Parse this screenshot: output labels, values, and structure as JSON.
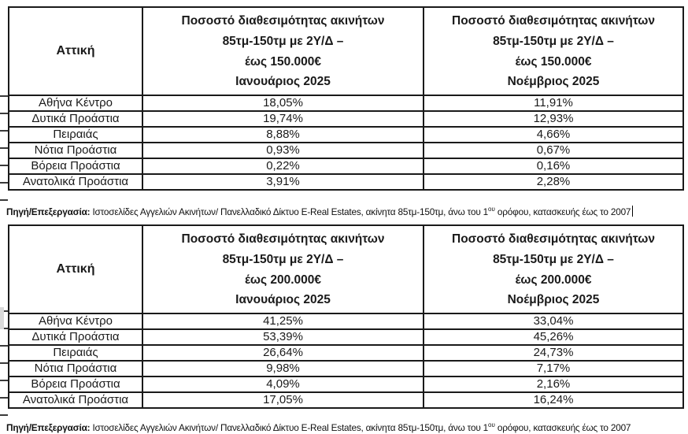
{
  "page": {
    "background_color": "#ffffff",
    "border_color": "#1a1a1a",
    "text_color": "#1a1a1a",
    "artifact_gray": "#d9d9d9"
  },
  "table1": {
    "region_label": "Αττική",
    "jan_header": {
      "line1": "Ποσοστό διαθεσιμότητας ακινήτων",
      "line2": "85τμ-150τμ με 2Υ/Δ –",
      "line3": "έως 150.000€",
      "month": "Ιανουάριος 2025"
    },
    "nov_header": {
      "line1": "Ποσοστό διαθεσιμότητας ακινήτων",
      "line2": "85τμ-150τμ με 2Υ/Δ –",
      "line3": "έως 150.000€",
      "month": "Νοέμβριος 2025"
    },
    "rows": [
      {
        "area": "Αθήνα Κέντρο",
        "jan": "18,05%",
        "nov": "11,91%"
      },
      {
        "area": "Δυτικά Προάστια",
        "jan": "19,74%",
        "nov": "12,93%"
      },
      {
        "area": "Πειραιάς",
        "jan": "8,88%",
        "nov": "4,66%"
      },
      {
        "area": "Νότια Προάστια",
        "jan": "0,93%",
        "nov": "0,67%"
      },
      {
        "area": "Βόρεια Προάστια",
        "jan": "0,22%",
        "nov": "0,16%"
      },
      {
        "area": "Ανατολικά Προάστια",
        "jan": "3,91%",
        "nov": "2,28%"
      }
    ]
  },
  "table2": {
    "region_label": "Αττική",
    "jan_header": {
      "line1": "Ποσοστό διαθεσιμότητας ακινήτων",
      "line2": "85τμ-150τμ με 2Υ/Δ –",
      "line3": "έως 200.000€",
      "month": "Ιανουάριος 2025"
    },
    "nov_header": {
      "line1": "Ποσοστό διαθεσιμότητας ακινήτων",
      "line2": "85τμ-150τμ με 2Υ/Δ –",
      "line3": "έως 200.000€",
      "month": "Νοέμβριος 2025"
    },
    "rows": [
      {
        "area": "Αθήνα Κέντρο",
        "jan": "41,25%",
        "nov": "33,04%"
      },
      {
        "area": "Δυτικά Προάστια",
        "jan": "53,39%",
        "nov": "45,26%"
      },
      {
        "area": "Πειραιάς",
        "jan": "26,64%",
        "nov": "24,73%"
      },
      {
        "area": "Νότια Προάστια",
        "jan": "9,98%",
        "nov": "7,17%"
      },
      {
        "area": "Βόρεια Προάστια",
        "jan": "4,09%",
        "nov": "2,16%"
      },
      {
        "area": "Ανατολικά Προάστια",
        "jan": "17,05%",
        "nov": "16,24%"
      }
    ]
  },
  "source_note": {
    "label": "Πηγή/Επεξεργασία:",
    "body": " Ιστοσελίδες Αγγελιών Ακινήτων/ Πανελλαδικό Δίκτυο E-Real Estates, ακίνητα 85τμ-150τμ,  άνω του 1",
    "superscript": "ου",
    "tail": " ορόφου, κατασκευής έως το 2007"
  }
}
